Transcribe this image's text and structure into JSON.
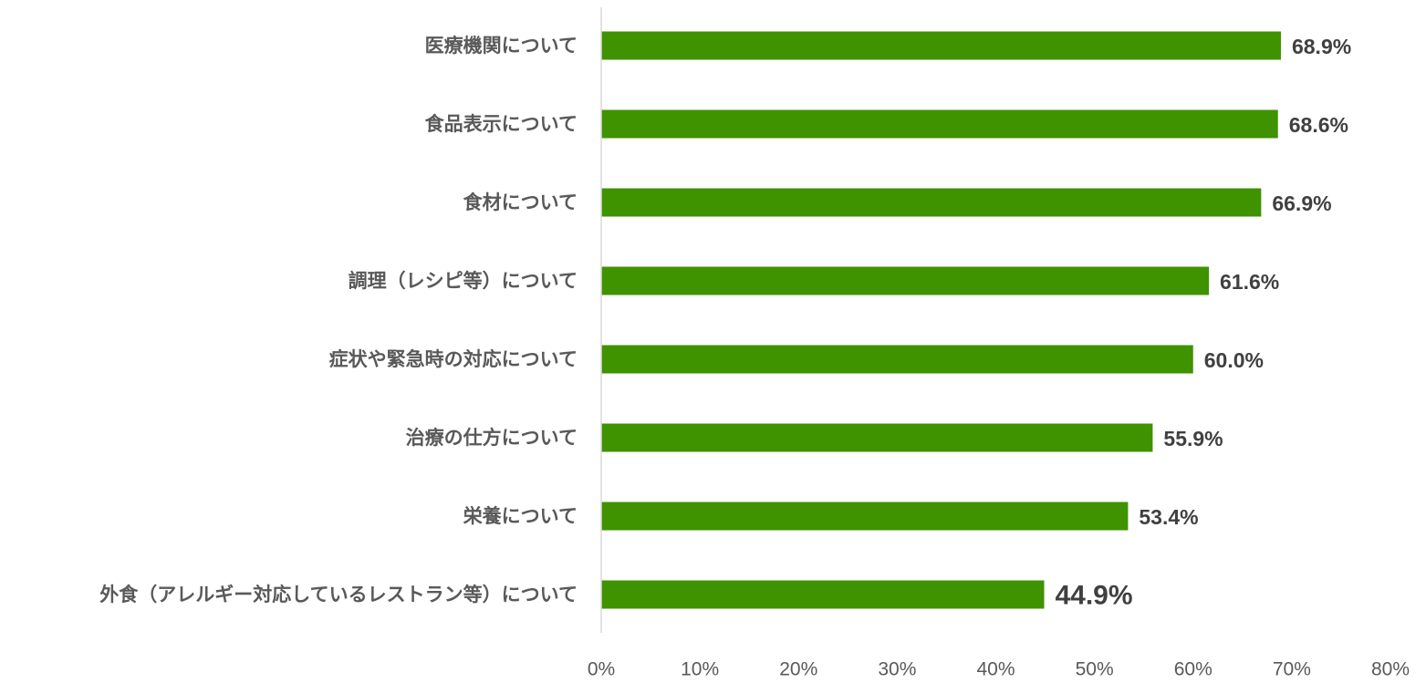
{
  "colors": {
    "bar": "#3f9200",
    "axis": "#d9d9d9",
    "category_text": "#595959",
    "value_text": "#404040",
    "tick_text": "#595959"
  },
  "chart_data": {
    "type": "bar",
    "orientation": "horizontal",
    "title": "",
    "xlabel": "",
    "ylabel": "",
    "xlim": [
      0,
      80
    ],
    "x_ticks": [
      "0%",
      "10%",
      "20%",
      "30%",
      "40%",
      "50%",
      "60%",
      "70%",
      "80%"
    ],
    "grid": false,
    "legend": "none",
    "categories": [
      "医療機関について",
      "食品表示について",
      "食材について",
      "調理（レシピ等）について",
      "症状や緊急時の対応について",
      "治療の仕方について",
      "栄養について",
      "外食（アレルギー対応しているレストラン等）について"
    ],
    "values": [
      68.9,
      68.6,
      66.9,
      61.6,
      60.0,
      55.9,
      53.4,
      44.9
    ],
    "value_labels": [
      "68.9%",
      "68.6%",
      "66.9%",
      "61.6%",
      "60.0%",
      "55.9%",
      "53.4%",
      "44.9%"
    ]
  }
}
